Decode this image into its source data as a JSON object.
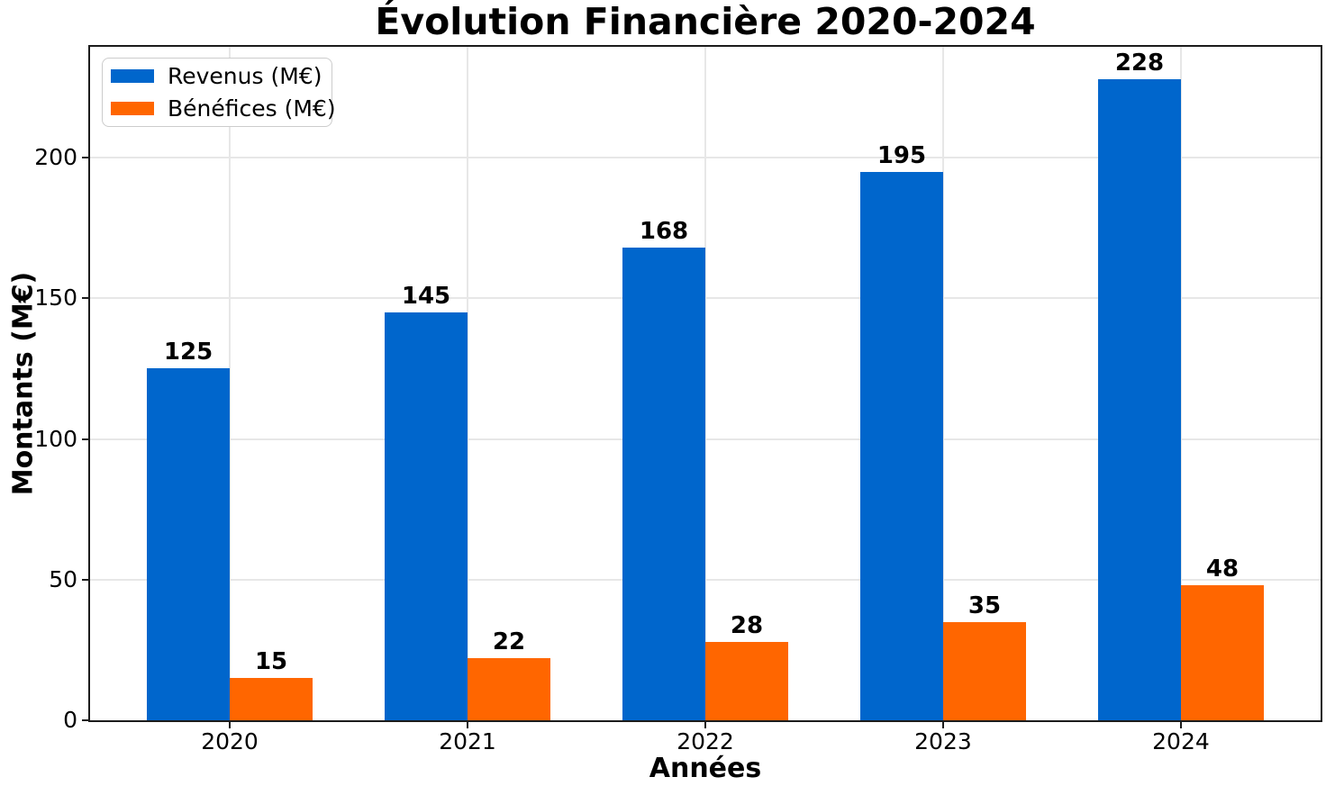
{
  "figure": {
    "title": "Évolution Financière 2020-2024",
    "xlabel": "Années",
    "ylabel": "Montants (M€)"
  },
  "legend": {
    "position": "upper-left",
    "items": [
      {
        "label": "Revenus (M€)",
        "color": "#0066cc"
      },
      {
        "label": "Bénéfices (M€)",
        "color": "#ff6600"
      }
    ]
  },
  "chart_data": {
    "type": "bar",
    "title": "Évolution Financière 2020-2024",
    "xlabel": "Années",
    "ylabel": "Montants (M€)",
    "categories": [
      "2020",
      "2021",
      "2022",
      "2023",
      "2024"
    ],
    "series": [
      {
        "name": "Revenus (M€)",
        "color": "#0066cc",
        "values": [
          125,
          145,
          168,
          195,
          228
        ]
      },
      {
        "name": "Bénéfices (M€)",
        "color": "#ff6600",
        "values": [
          15,
          22,
          28,
          35,
          48
        ]
      }
    ],
    "yticks": [
      0,
      50,
      100,
      150,
      200
    ],
    "ylim": [
      0,
      239.4
    ],
    "grid": true,
    "grid_color": "#e7e7e7",
    "legend_position": "upper-left",
    "bar_value_labels": true,
    "bar_width_ratio": 0.35
  }
}
